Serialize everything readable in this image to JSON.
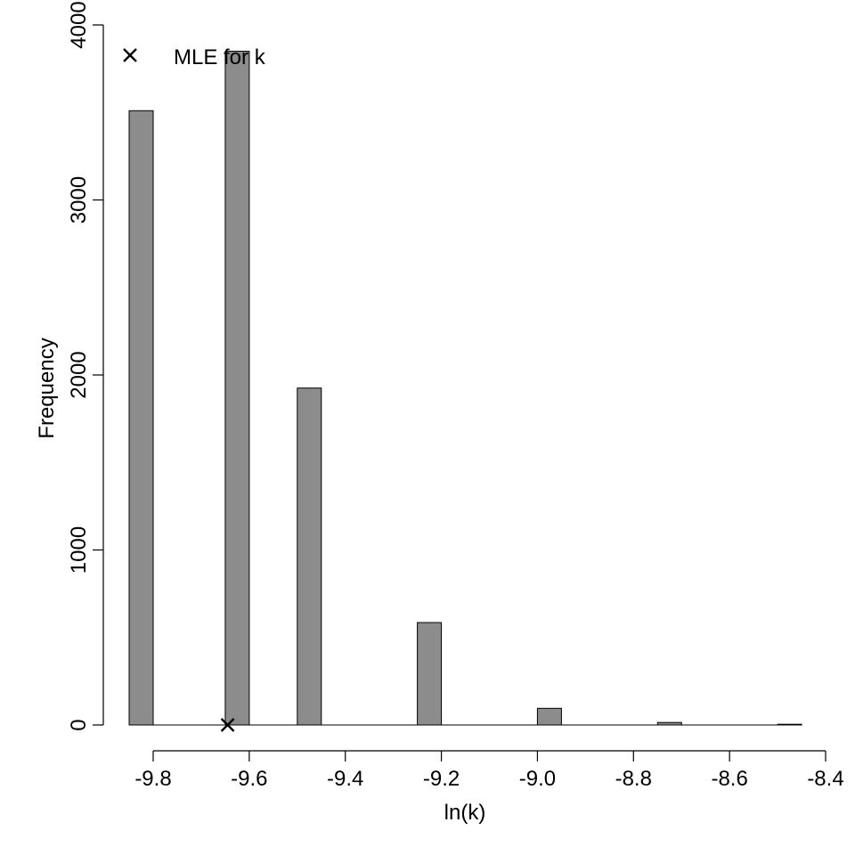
{
  "chart_data": {
    "type": "bar",
    "xlabel": "ln(k)",
    "ylabel": "Frequency",
    "xlim": [
      -9.8,
      -8.4
    ],
    "ylim": [
      0,
      4000
    ],
    "x_ticks": [
      "-9.8",
      "-9.6",
      "-9.4",
      "-9.2",
      "-9.0",
      "-8.8",
      "-8.6",
      "-8.4"
    ],
    "y_ticks": [
      "0",
      "1000",
      "2000",
      "3000",
      "4000"
    ],
    "bars": [
      {
        "x_start": -9.85,
        "x_end": -9.8,
        "value": 3510
      },
      {
        "x_start": -9.65,
        "x_end": -9.6,
        "value": 3850
      },
      {
        "x_start": -9.5,
        "x_end": -9.45,
        "value": 1925
      },
      {
        "x_start": -9.25,
        "x_end": -9.2,
        "value": 585
      },
      {
        "x_start": -9.0,
        "x_end": -8.95,
        "value": 95
      },
      {
        "x_start": -8.75,
        "x_end": -8.7,
        "value": 14
      },
      {
        "x_start": -8.5,
        "x_end": -8.45,
        "value": 4
      }
    ],
    "bar_color": "#8c8c8c",
    "mle": {
      "x": -9.645,
      "y": 0
    },
    "legend": {
      "label": "MLE for k",
      "symbol": "x",
      "position": "top-left"
    },
    "grid": false
  }
}
